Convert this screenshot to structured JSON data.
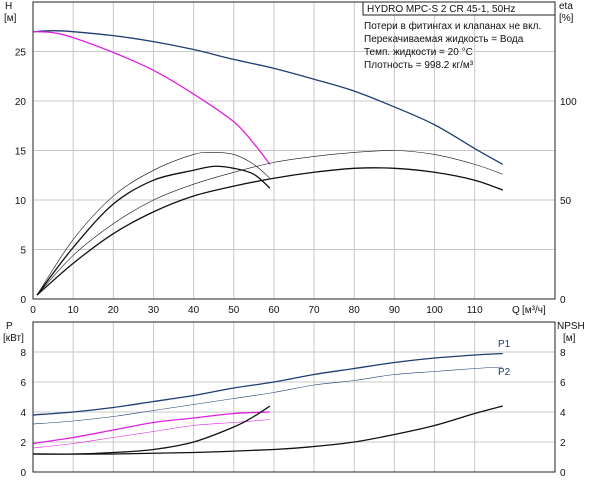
{
  "top_panel": {
    "title_box": "HYDRO MPC-S 2 CR 45-1, 50Hz",
    "info_lines": [
      "Потери в фитингах и клапанах не вкл.",
      "Перекачиваемая жидкость = Вода",
      "Темп. жидкости = 20 °C",
      "Плотность = 998.2 кг/м³"
    ],
    "left_axis": {
      "symbol": "H",
      "unit": "[м]"
    },
    "right_axis": {
      "symbol": "eta",
      "unit": "[%]"
    },
    "x_axis": {
      "symbol": "Q",
      "unit": "[м³/ч]"
    }
  },
  "bottom_panel": {
    "left_axis": {
      "symbol": "P",
      "unit": "[кВт]"
    },
    "right_axis": {
      "symbol": "NPSH",
      "unit": "[м]"
    },
    "curve_labels": [
      "P1",
      "P2"
    ]
  },
  "colors": {
    "navy": "#1f3b73",
    "magenta": "#e020e0",
    "black": "#111111",
    "grid": "#c8c8c8"
  },
  "chart_data": [
    {
      "type": "line",
      "title": "HYDRO MPC-S 2 CR 45-1, 50Hz",
      "xlabel": "Q [м³/ч]",
      "ylabel": "H [м]",
      "y2label": "eta [%]",
      "xlim": [
        0,
        130
      ],
      "ylim": [
        0,
        30
      ],
      "y2lim": [
        0,
        150
      ],
      "x_ticks": [
        0,
        10,
        20,
        30,
        40,
        50,
        60,
        70,
        80,
        90,
        100,
        110
      ],
      "y_ticks": [
        0,
        5,
        10,
        15,
        20,
        25
      ],
      "y2_ticks": [
        0,
        50,
        100
      ],
      "grid": true,
      "series": [
        {
          "color": "#1f3b73",
          "axis": "left",
          "width": 1.3,
          "points": [
            [
              0,
              27.0
            ],
            [
              5,
              27.1
            ],
            [
              10,
              27.0
            ],
            [
              20,
              26.6
            ],
            [
              30,
              26.0
            ],
            [
              40,
              25.2
            ],
            [
              50,
              24.2
            ],
            [
              60,
              23.3
            ],
            [
              70,
              22.2
            ],
            [
              80,
              21.0
            ],
            [
              90,
              19.4
            ],
            [
              100,
              17.6
            ],
            [
              110,
              15.2
            ],
            [
              117,
              13.6
            ]
          ]
        },
        {
          "color": "#e020e0",
          "axis": "left",
          "width": 1.3,
          "points": [
            [
              0,
              27.0
            ],
            [
              5,
              26.9
            ],
            [
              10,
              26.4
            ],
            [
              20,
              24.9
            ],
            [
              30,
              23.1
            ],
            [
              40,
              20.7
            ],
            [
              50,
              17.9
            ],
            [
              55,
              15.7
            ],
            [
              59,
              13.6
            ]
          ]
        },
        {
          "color": "#111111",
          "axis": "right",
          "width": 0.6,
          "points": [
            [
              1,
              2
            ],
            [
              10,
              30
            ],
            [
              20,
              52
            ],
            [
              30,
              65
            ],
            [
              40,
              73
            ],
            [
              45,
              74
            ],
            [
              50,
              73
            ],
            [
              55,
              68
            ],
            [
              59,
              61
            ]
          ]
        },
        {
          "color": "#111111",
          "axis": "right",
          "width": 1.3,
          "points": [
            [
              1,
              2
            ],
            [
              10,
              26
            ],
            [
              20,
              48
            ],
            [
              30,
              60
            ],
            [
              40,
              65
            ],
            [
              45,
              67
            ],
            [
              50,
              66
            ],
            [
              55,
              63
            ],
            [
              59,
              56
            ]
          ]
        },
        {
          "color": "#111111",
          "axis": "right",
          "width": 0.6,
          "points": [
            [
              1,
              2
            ],
            [
              10,
              22
            ],
            [
              20,
              38
            ],
            [
              30,
              50
            ],
            [
              40,
              58
            ],
            [
              50,
              64
            ],
            [
              60,
              69
            ],
            [
              70,
              72
            ],
            [
              80,
              74
            ],
            [
              90,
              75
            ],
            [
              100,
              73
            ],
            [
              110,
              68
            ],
            [
              117,
              63
            ]
          ]
        },
        {
          "color": "#111111",
          "axis": "right",
          "width": 1.3,
          "points": [
            [
              1,
              2
            ],
            [
              10,
              18
            ],
            [
              20,
              33
            ],
            [
              30,
              44
            ],
            [
              40,
              52
            ],
            [
              50,
              57
            ],
            [
              60,
              61
            ],
            [
              70,
              64
            ],
            [
              80,
              66
            ],
            [
              90,
              66
            ],
            [
              100,
              64
            ],
            [
              110,
              60
            ],
            [
              117,
              55
            ]
          ]
        }
      ]
    },
    {
      "type": "line",
      "xlabel": "",
      "ylabel": "P [кВт]",
      "y2label": "NPSH [м]",
      "xlim": [
        0,
        130
      ],
      "ylim": [
        0,
        10
      ],
      "y2lim": [
        0,
        10
      ],
      "y_ticks": [
        0,
        2,
        4,
        6,
        8
      ],
      "y2_ticks": [
        0,
        2,
        4,
        6,
        8
      ],
      "grid": true,
      "series": [
        {
          "name": "P1",
          "color": "#1f3b73",
          "axis": "left",
          "width": 1.3,
          "points": [
            [
              0,
              3.8
            ],
            [
              10,
              4.0
            ],
            [
              20,
              4.3
            ],
            [
              30,
              4.7
            ],
            [
              40,
              5.1
            ],
            [
              50,
              5.6
            ],
            [
              60,
              6.0
            ],
            [
              70,
              6.5
            ],
            [
              80,
              6.9
            ],
            [
              90,
              7.3
            ],
            [
              100,
              7.6
            ],
            [
              110,
              7.8
            ],
            [
              117,
              7.9
            ]
          ]
        },
        {
          "name": "P2",
          "color": "#1f3b73",
          "axis": "left",
          "width": 0.6,
          "points": [
            [
              0,
              3.2
            ],
            [
              10,
              3.4
            ],
            [
              20,
              3.7
            ],
            [
              30,
              4.1
            ],
            [
              40,
              4.5
            ],
            [
              50,
              4.9
            ],
            [
              60,
              5.3
            ],
            [
              70,
              5.8
            ],
            [
              80,
              6.1
            ],
            [
              90,
              6.5
            ],
            [
              100,
              6.7
            ],
            [
              110,
              6.9
            ],
            [
              117,
              7.0
            ]
          ]
        },
        {
          "color": "#e020e0",
          "axis": "left",
          "width": 1.3,
          "points": [
            [
              0,
              1.9
            ],
            [
              10,
              2.3
            ],
            [
              20,
              2.8
            ],
            [
              30,
              3.3
            ],
            [
              40,
              3.6
            ],
            [
              50,
              3.9
            ],
            [
              59,
              4.0
            ]
          ]
        },
        {
          "color": "#e020e0",
          "axis": "left",
          "width": 0.6,
          "points": [
            [
              0,
              1.6
            ],
            [
              10,
              1.9
            ],
            [
              20,
              2.3
            ],
            [
              30,
              2.7
            ],
            [
              40,
              3.1
            ],
            [
              50,
              3.3
            ],
            [
              59,
              3.5
            ]
          ]
        },
        {
          "color": "#111111",
          "axis": "right",
          "width": 1.3,
          "points": [
            [
              0,
              1.2
            ],
            [
              10,
              1.2
            ],
            [
              20,
              1.3
            ],
            [
              30,
              1.5
            ],
            [
              40,
              2.0
            ],
            [
              50,
              3.0
            ],
            [
              55,
              3.7
            ],
            [
              59,
              4.4
            ]
          ]
        },
        {
          "color": "#111111",
          "axis": "right",
          "width": 1.3,
          "points": [
            [
              0,
              1.2
            ],
            [
              20,
              1.2
            ],
            [
              40,
              1.3
            ],
            [
              60,
              1.5
            ],
            [
              70,
              1.7
            ],
            [
              80,
              2.0
            ],
            [
              90,
              2.5
            ],
            [
              100,
              3.1
            ],
            [
              110,
              3.9
            ],
            [
              117,
              4.4
            ]
          ]
        }
      ]
    }
  ]
}
